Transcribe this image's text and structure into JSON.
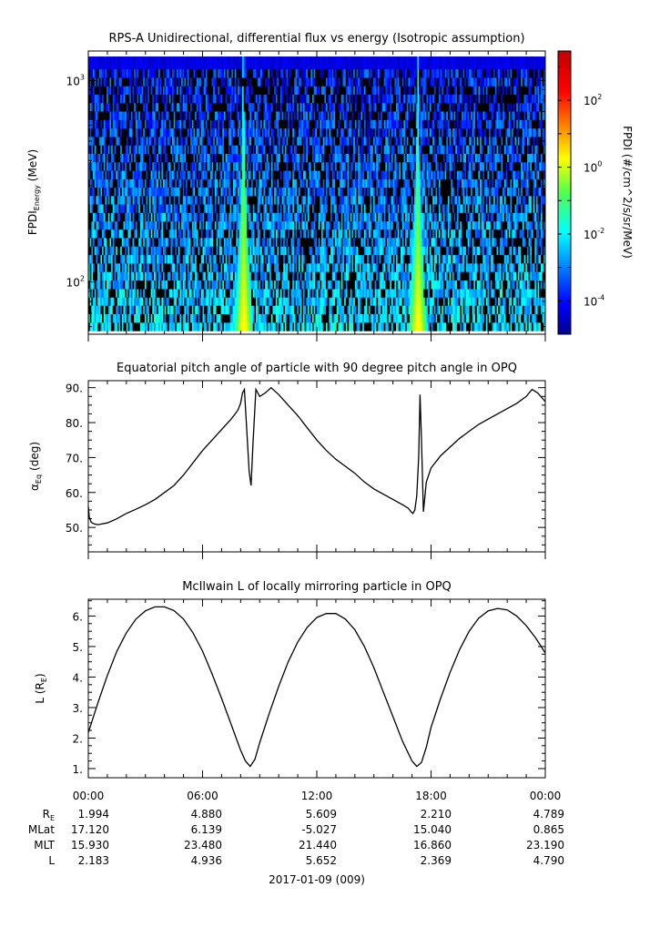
{
  "chart_data": [
    {
      "type": "heatmap",
      "title": "RPS-A Unidirectional, differential flux vs energy (Isotropic assumption)",
      "ylabel_main": "FPDI",
      "ylabel_sub": "Energy",
      "ylabel_unit": "(MeV)",
      "y_scale": "log",
      "ylim": [
        55,
        1400
      ],
      "yticks": [
        {
          "value": 100,
          "base": "10",
          "exp": "2"
        },
        {
          "value": 1000,
          "base": "10",
          "exp": "3"
        }
      ],
      "colorbar": {
        "label": "FPDI (#/cm^2/s/sr/MeV)",
        "scale": "log",
        "range": [
          1e-05,
          3000
        ],
        "ticks": [
          {
            "value": 0.0001,
            "base": "10",
            "exp": "-4"
          },
          {
            "value": 0.01,
            "base": "10",
            "exp": "-2"
          },
          {
            "value": 1,
            "base": "10",
            "exp": "0"
          },
          {
            "value": 100,
            "base": "10",
            "exp": "2"
          }
        ]
      },
      "energy_channels_mev": [
        60,
        66,
        73,
        80,
        88,
        97,
        107,
        118,
        130,
        143,
        158,
        174,
        191,
        210,
        232,
        255,
        281,
        309,
        340,
        375,
        413,
        455,
        501,
        552,
        608,
        670,
        738,
        812,
        895,
        985,
        1085,
        1195
      ],
      "enhancements": [
        {
          "center_hours": 8.15,
          "peak_log10_flux": 0.3
        },
        {
          "center_hours": 17.3,
          "peak_log10_flux": 0.3
        }
      ]
    },
    {
      "type": "line",
      "title": "Equatorial pitch angle of particle with 90 degree pitch angle in OPQ",
      "ylabel_main": "α",
      "ylabel_sub": "Eq",
      "ylabel_unit": "(deg)",
      "ylim": [
        43,
        92
      ],
      "yticks": [
        50,
        60,
        70,
        80,
        90
      ],
      "x_hours": [
        0,
        0.05,
        0.15,
        0.3,
        0.5,
        1,
        1.5,
        2,
        2.5,
        3,
        3.5,
        4,
        4.5,
        5,
        5.5,
        6,
        6.5,
        7,
        7.5,
        7.85,
        8.0,
        8.1,
        8.2,
        8.3,
        8.45,
        8.55,
        8.65,
        8.8,
        9.0,
        9.3,
        9.6,
        10,
        10.5,
        11,
        11.5,
        12,
        12.5,
        13,
        13.5,
        14,
        14.5,
        15,
        15.5,
        16,
        16.5,
        16.8,
        16.95,
        17.05,
        17.15,
        17.25,
        17.35,
        17.42,
        17.5,
        17.6,
        17.75,
        18,
        18.5,
        19,
        19.5,
        20,
        20.5,
        21,
        21.5,
        22,
        22.5,
        23,
        23.3,
        23.6,
        24
      ],
      "y_deg": [
        56,
        53,
        51.5,
        51,
        50.8,
        51.3,
        52.5,
        54,
        55.2,
        56.5,
        58,
        60,
        62,
        65,
        68.5,
        72,
        75,
        78,
        81,
        83.5,
        85.5,
        88.5,
        89.5,
        80,
        66,
        62,
        74,
        89.5,
        87.5,
        88.5,
        90,
        88,
        85,
        82,
        78.5,
        75,
        72,
        69.5,
        67.5,
        65.5,
        63,
        61,
        59.5,
        58,
        56.5,
        55.5,
        54.5,
        54,
        55,
        59,
        70,
        88,
        75,
        54.5,
        63,
        67,
        70.5,
        73,
        75.5,
        77.5,
        79.5,
        81,
        82.5,
        84,
        85.5,
        87.5,
        89.5,
        88.5,
        86
      ]
    },
    {
      "type": "line",
      "title": "McIlwain L of locally mirroring particle in OPQ",
      "ylabel_main": "L (R",
      "ylabel_sub": "E",
      "ylabel_unit": ")",
      "ylim": [
        0.7,
        6.55
      ],
      "yticks": [
        1,
        2,
        3,
        4,
        5,
        6
      ],
      "x_hours": [
        0,
        0.5,
        1,
        1.5,
        2,
        2.5,
        3,
        3.5,
        4,
        4.5,
        5,
        5.5,
        6,
        6.5,
        7,
        7.5,
        8,
        8.25,
        8.5,
        8.75,
        9,
        9.5,
        10,
        10.5,
        11,
        11.5,
        12,
        12.5,
        13,
        13.5,
        14,
        14.5,
        15,
        15.5,
        16,
        16.5,
        17,
        17.25,
        17.5,
        17.75,
        18,
        18.5,
        19,
        19.5,
        20,
        20.5,
        21,
        21.5,
        22,
        22.5,
        23,
        23.5,
        24
      ],
      "y_L": [
        2.18,
        3.15,
        4.05,
        4.85,
        5.45,
        5.9,
        6.17,
        6.3,
        6.3,
        6.18,
        5.9,
        5.45,
        4.85,
        4.1,
        3.3,
        2.45,
        1.6,
        1.25,
        1.07,
        1.3,
        1.85,
        2.8,
        3.7,
        4.5,
        5.15,
        5.63,
        5.95,
        6.08,
        6.08,
        5.9,
        5.55,
        5.0,
        4.3,
        3.5,
        2.7,
        1.9,
        1.25,
        1.07,
        1.2,
        1.7,
        2.35,
        3.3,
        4.15,
        4.9,
        5.5,
        5.93,
        6.17,
        6.25,
        6.2,
        6.0,
        5.68,
        5.28,
        4.79
      ]
    }
  ],
  "x_axis": {
    "range_hours": [
      0,
      24
    ],
    "tick_labels": [
      {
        "hour": 0,
        "label": "00:00"
      },
      {
        "hour": 6,
        "label": "06:00"
      },
      {
        "hour": 12,
        "label": "12:00"
      },
      {
        "hour": 18,
        "label": "18:00"
      },
      {
        "hour": 24,
        "label": "00:00"
      }
    ],
    "date_label": "2017-01-09 (009)"
  },
  "ephemeris": {
    "rows": [
      {
        "name_main": "R",
        "name_sub": "E",
        "values": [
          "1.994",
          "4.880",
          "5.609",
          "2.210",
          "4.789"
        ]
      },
      {
        "name_main": "MLat",
        "name_sub": "",
        "values": [
          "17.120",
          "6.139",
          "-5.027",
          "15.040",
          "0.865"
        ]
      },
      {
        "name_main": "MLT",
        "name_sub": "",
        "values": [
          "15.930",
          "23.480",
          "21.440",
          "16.860",
          "23.190"
        ]
      },
      {
        "name_main": "L",
        "name_sub": "",
        "values": [
          "2.183",
          "4.936",
          "5.652",
          "2.369",
          "4.790"
        ]
      }
    ]
  }
}
